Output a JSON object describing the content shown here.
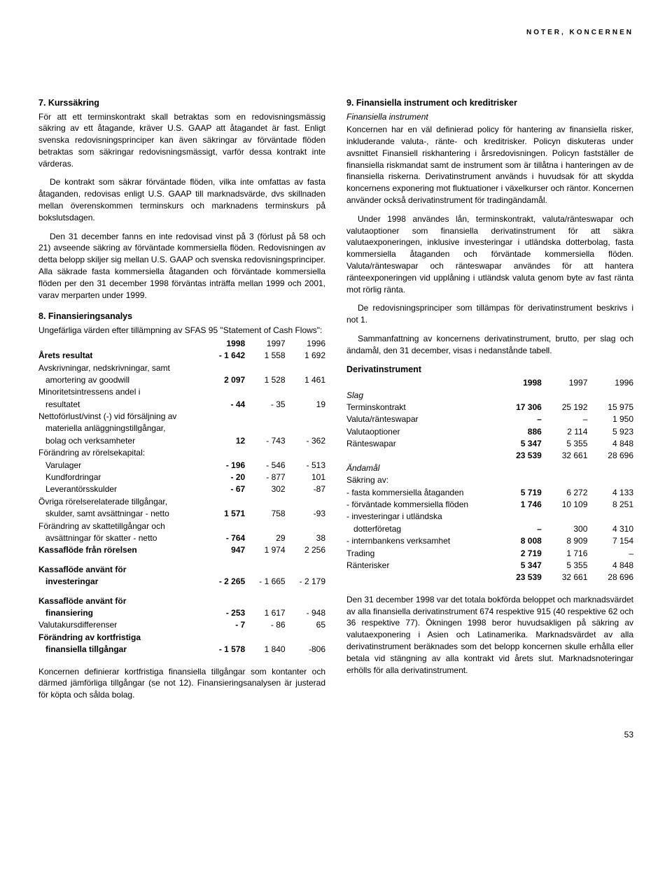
{
  "header": "NOTER, KONCERNEN",
  "pagenum": "53",
  "left": {
    "s7": {
      "title": "7. Kurssäkring",
      "p1": "För att ett terminskontrakt skall betraktas som en redovisningsmässig säkring av ett åtagande, kräver U.S. GAAP att åtagandet är fast. Enligt svenska redovisningsprinciper kan även säkringar av förväntade flöden betraktas som säkringar redovisningsmässigt, varför dessa kontrakt inte värderas.",
      "p2": "De kontrakt som säkrar förväntade flöden, vilka inte omfattas av fasta åtaganden, redovisas enligt U.S. GAAP till marknadsvärde, dvs skillnaden mellan överenskommen terminskurs och marknadens terminskurs på bokslutsdagen.",
      "p3": "Den 31 december fanns en inte redovisad vinst på 3 (förlust på 58 och 21) avseende säkring av förväntade kommersiella flöden. Redovisningen av detta belopp skiljer sig mellan U.S. GAAP och svenska redovisningsprinciper. Alla säkrade fasta kommersiella åtaganden och förväntade kommersiella flöden per den 31 december 1998 förväntas inträffa mellan 1999 och 2001, varav merparten under 1999."
    },
    "s8": {
      "title": "8. Finansieringsanalys",
      "intro": "Ungefärliga värden efter tillämpning av SFAS 95 \"Statement of Cash Flows\":",
      "headers": [
        "1998",
        "1997",
        "1996"
      ],
      "rows": [
        {
          "label": "Årets resultat",
          "bold": true,
          "v": [
            "- 1 642",
            "1 558",
            "1 692"
          ]
        },
        {
          "label": "Avskrivningar, nedskrivningar, samt",
          "v": [
            "",
            "",
            ""
          ]
        },
        {
          "label": "amortering av goodwill",
          "indent": true,
          "v": [
            "2 097",
            "1 528",
            "1 461"
          ],
          "bold98": true
        },
        {
          "label": "Minoritetsintressens andel i",
          "v": [
            "",
            "",
            ""
          ]
        },
        {
          "label": "resultatet",
          "indent": true,
          "v": [
            "- 44",
            "- 35",
            "19"
          ],
          "bold98": true
        },
        {
          "label": "Nettoförlust/vinst (-) vid försäljning av",
          "v": [
            "",
            "",
            ""
          ]
        },
        {
          "label": "materiella anläggningstillgångar,",
          "indent": true,
          "v": [
            "",
            "",
            ""
          ]
        },
        {
          "label": "bolag och verksamheter",
          "indent": true,
          "v": [
            "12",
            "- 743",
            "- 362"
          ],
          "bold98": true
        },
        {
          "label": "Förändring av rörelsekapital:",
          "v": [
            "",
            "",
            ""
          ]
        },
        {
          "label": "Varulager",
          "indent": true,
          "v": [
            "- 196",
            "- 546",
            "- 513"
          ],
          "bold98": true
        },
        {
          "label": "Kundfordringar",
          "indent": true,
          "v": [
            "- 20",
            "- 877",
            "101"
          ],
          "bold98": true
        },
        {
          "label": "Leverantörsskulder",
          "indent": true,
          "v": [
            "- 67",
            "302",
            "-87"
          ],
          "bold98": true
        },
        {
          "label": "Övriga rörelserelaterade tillgångar,",
          "v": [
            "",
            "",
            ""
          ]
        },
        {
          "label": "skulder, samt avsättningar - netto",
          "indent": true,
          "v": [
            "1 571",
            "758",
            "-93"
          ],
          "bold98": true
        },
        {
          "label": "Förändring av skattetillgångar och",
          "v": [
            "",
            "",
            ""
          ]
        },
        {
          "label": "avsättningar för skatter - netto",
          "indent": true,
          "v": [
            "- 764",
            "29",
            "38"
          ],
          "bold98": true
        },
        {
          "label": "Kassaflöde från rörelsen",
          "bold": true,
          "v": [
            "947",
            "1 974",
            "2 256"
          ]
        }
      ],
      "rows2": [
        {
          "label": "Kassaflöde använt för",
          "bold": true,
          "v": [
            "",
            "",
            ""
          ]
        },
        {
          "label": "investeringar",
          "indent": true,
          "bold": true,
          "v": [
            "- 2 265",
            "- 1 665",
            "- 2 179"
          ]
        }
      ],
      "rows3": [
        {
          "label": "Kassaflöde använt för",
          "bold": true,
          "v": [
            "",
            "",
            ""
          ]
        },
        {
          "label": "finansiering",
          "indent": true,
          "bold": true,
          "v": [
            "- 253",
            "1 617",
            "- 948"
          ]
        },
        {
          "label": "Valutakursdifferenser",
          "v": [
            "- 7",
            "- 86",
            "65"
          ],
          "bold98": true
        },
        {
          "label": "Förändring av kortfristiga",
          "bold": true,
          "v": [
            "",
            "",
            ""
          ]
        },
        {
          "label": "finansiella tillgångar",
          "indent": true,
          "bold": true,
          "v": [
            "- 1 578",
            "1 840",
            "-806"
          ]
        }
      ],
      "footer": "Koncernen definierar kortfristiga finansiella tillgångar som kontanter och därmed jämförliga tillgångar (se not 12). Finansieringsanalysen är justerad för köpta och sålda bolag."
    }
  },
  "right": {
    "s9": {
      "title": "9. Finansiella instrument och kreditrisker",
      "sub": "Finansiella instrument",
      "p1": "Koncernen har en väl definierad policy för hantering av finansiella risker, inkluderande valuta-, ränte- och kreditrisker. Policyn diskuteras under avsnittet Finansiell riskhantering i årsredovisningen. Policyn fastställer de finansiella riskmandat samt de instrument som är tillåtna i hanteringen av de finansiella riskerna. Derivatinstrument används i huvudsak för att skydda koncernens exponering mot fluktuationer i växelkurser och räntor. Koncernen använder också derivatinstrument för tradingändamål.",
      "p2": "Under 1998 användes lån, terminskontrakt, valuta/ränteswapar och valutaoptioner som finansiella derivatinstrument för att säkra valutaexponeringen, inklusive investeringar i utländska dotterbolag, fasta kommersiella åtaganden och förväntade kommersiella flöden. Valuta/ränteswapar och ränteswapar användes för att hantera ränteexponeringen vid upplåning i utländsk valuta genom byte av fast ränta mot rörlig ränta.",
      "p3": "De redovisningsprinciper som tillämpas för derivatinstrument beskrivs i not 1.",
      "p4": "Sammanfattning av koncernens derivatinstrument, brutto, per slag och ändamål, den 31 december, visas i nedanstånde tabell."
    },
    "deriv": {
      "title": "Derivatinstrument",
      "headers": [
        "1998",
        "1997",
        "1996"
      ],
      "slag_title": "Slag",
      "slag": [
        {
          "label": "Terminskontrakt",
          "v": [
            "17 306",
            "25 192",
            "15 975"
          ]
        },
        {
          "label": "Valuta/ränteswapar",
          "v": [
            "–",
            "–",
            "1 950"
          ]
        },
        {
          "label": "Valutaoptioner",
          "v": [
            "886",
            "2 114",
            "5 923"
          ]
        },
        {
          "label": "Ränteswapar",
          "v": [
            "5 347",
            "5 355",
            "4 848"
          ]
        }
      ],
      "slag_total": [
        "23 539",
        "32 661",
        "28 696"
      ],
      "andamal_title": "Ändamål",
      "sakring": "Säkring av:",
      "andamal": [
        {
          "label": "- fasta kommersiella åtaganden",
          "v": [
            "5 719",
            "6 272",
            "4 133"
          ]
        },
        {
          "label": "- förväntade kommersiella flöden",
          "v": [
            "1 746",
            "10 109",
            "8 251"
          ]
        },
        {
          "label": "- investeringar i utländska",
          "v": [
            "",
            "",
            ""
          ]
        },
        {
          "label": "dotterföretag",
          "indent": true,
          "v": [
            "–",
            "300",
            "4 310"
          ]
        },
        {
          "label": "- internbankens verksamhet",
          "v": [
            "8 008",
            "8 909",
            "7 154"
          ]
        },
        {
          "label": "Trading",
          "v": [
            "2 719",
            "1 716",
            "–"
          ]
        },
        {
          "label": "Ränterisker",
          "v": [
            "5 347",
            "5 355",
            "4 848"
          ]
        }
      ],
      "andamal_total": [
        "23 539",
        "32 661",
        "28 696"
      ],
      "footer": "Den 31 december 1998 var det totala bokförda beloppet och marknadsvärdet av alla finansiella derivatinstrument 674 respektive 915 (40 respektive 62 och 36 respektive 77). Ökningen 1998 beror huvudsakligen på säkring av valutaexponering i Asien och Latinamerika. Marknadsvärdet av alla derivatinstrument beräknades som det belopp koncernen skulle erhålla eller betala vid stängning av alla kontrakt vid årets slut. Marknadsnoteringar erhölls för alla derivatinstrument."
    }
  }
}
